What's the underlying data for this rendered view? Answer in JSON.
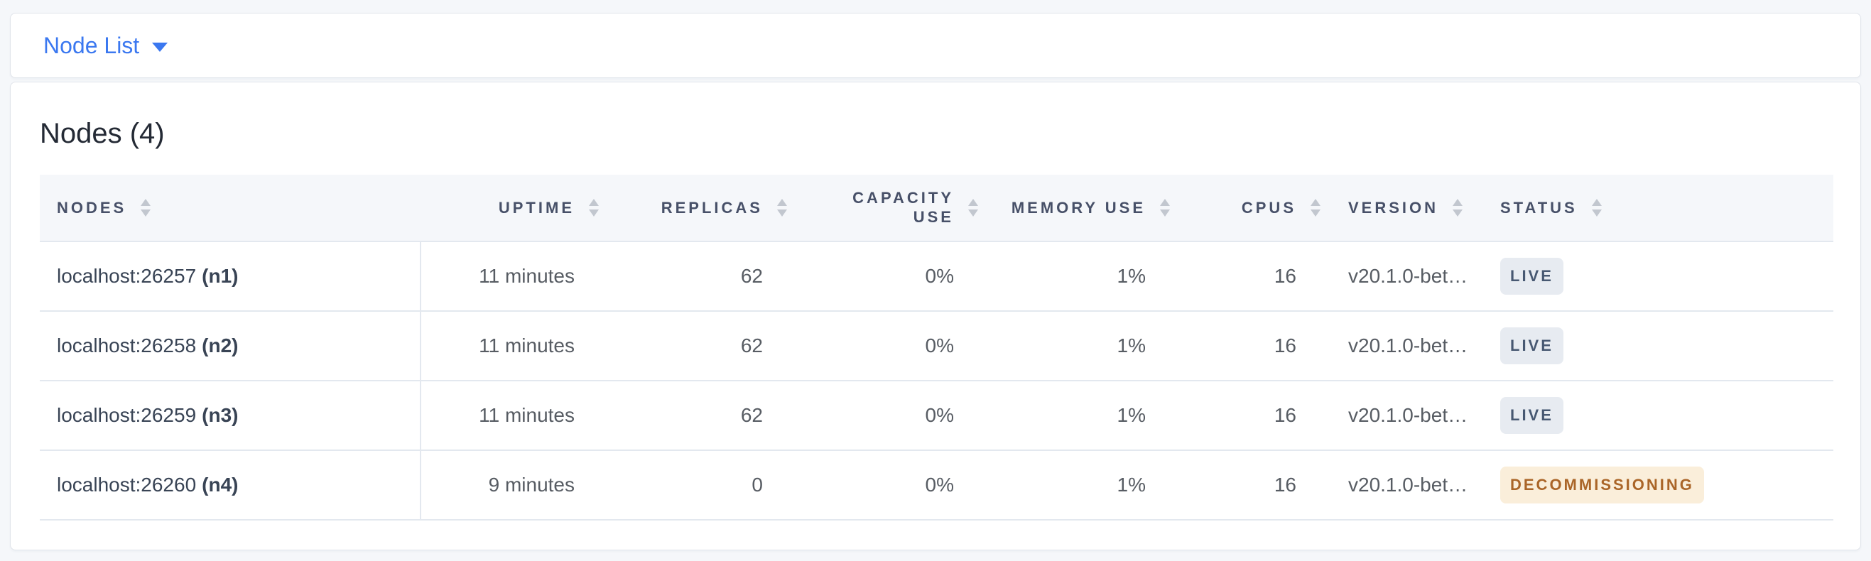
{
  "view_selector": {
    "label": "Node List"
  },
  "page": {
    "title": "Nodes (4)"
  },
  "table": {
    "columns": [
      {
        "key": "nodes",
        "label": "NODES",
        "align": "left"
      },
      {
        "key": "uptime",
        "label": "UPTIME",
        "align": "right"
      },
      {
        "key": "replicas",
        "label": "REPLICAS",
        "align": "right"
      },
      {
        "key": "capacity_use",
        "label": "CAPACITY USE",
        "align": "right",
        "wrap": true
      },
      {
        "key": "memory_use",
        "label": "MEMORY USE",
        "align": "right"
      },
      {
        "key": "cpus",
        "label": "CPUS",
        "align": "right"
      },
      {
        "key": "version",
        "label": "VERSION",
        "align": "left"
      },
      {
        "key": "status",
        "label": "STATUS",
        "align": "left"
      }
    ],
    "rows": [
      {
        "address": "localhost:26257",
        "node_id": "(n1)",
        "uptime": "11 minutes",
        "replicas": "62",
        "capacity_use": "0%",
        "memory_use": "1%",
        "cpus": "16",
        "version": "v20.1.0-bet…",
        "status": "LIVE",
        "status_type": "live"
      },
      {
        "address": "localhost:26258",
        "node_id": "(n2)",
        "uptime": "11 minutes",
        "replicas": "62",
        "capacity_use": "0%",
        "memory_use": "1%",
        "cpus": "16",
        "version": "v20.1.0-bet…",
        "status": "LIVE",
        "status_type": "live"
      },
      {
        "address": "localhost:26259",
        "node_id": "(n3)",
        "uptime": "11 minutes",
        "replicas": "62",
        "capacity_use": "0%",
        "memory_use": "1%",
        "cpus": "16",
        "version": "v20.1.0-bet…",
        "status": "LIVE",
        "status_type": "live"
      },
      {
        "address": "localhost:26260",
        "node_id": "(n4)",
        "uptime": "9 minutes",
        "replicas": "0",
        "capacity_use": "0%",
        "memory_use": "1%",
        "cpus": "16",
        "version": "v20.1.0-bet…",
        "status": "DECOMMISSIONING",
        "status_type": "decommissioning"
      }
    ]
  },
  "colors": {
    "accent_blue": "#3b78f0",
    "header_text": "#475068",
    "live_badge_bg": "#e7ebf1",
    "live_badge_text": "#475872",
    "decommissioning_badge_bg": "#faeeda",
    "decommissioning_badge_text": "#aa6528"
  }
}
